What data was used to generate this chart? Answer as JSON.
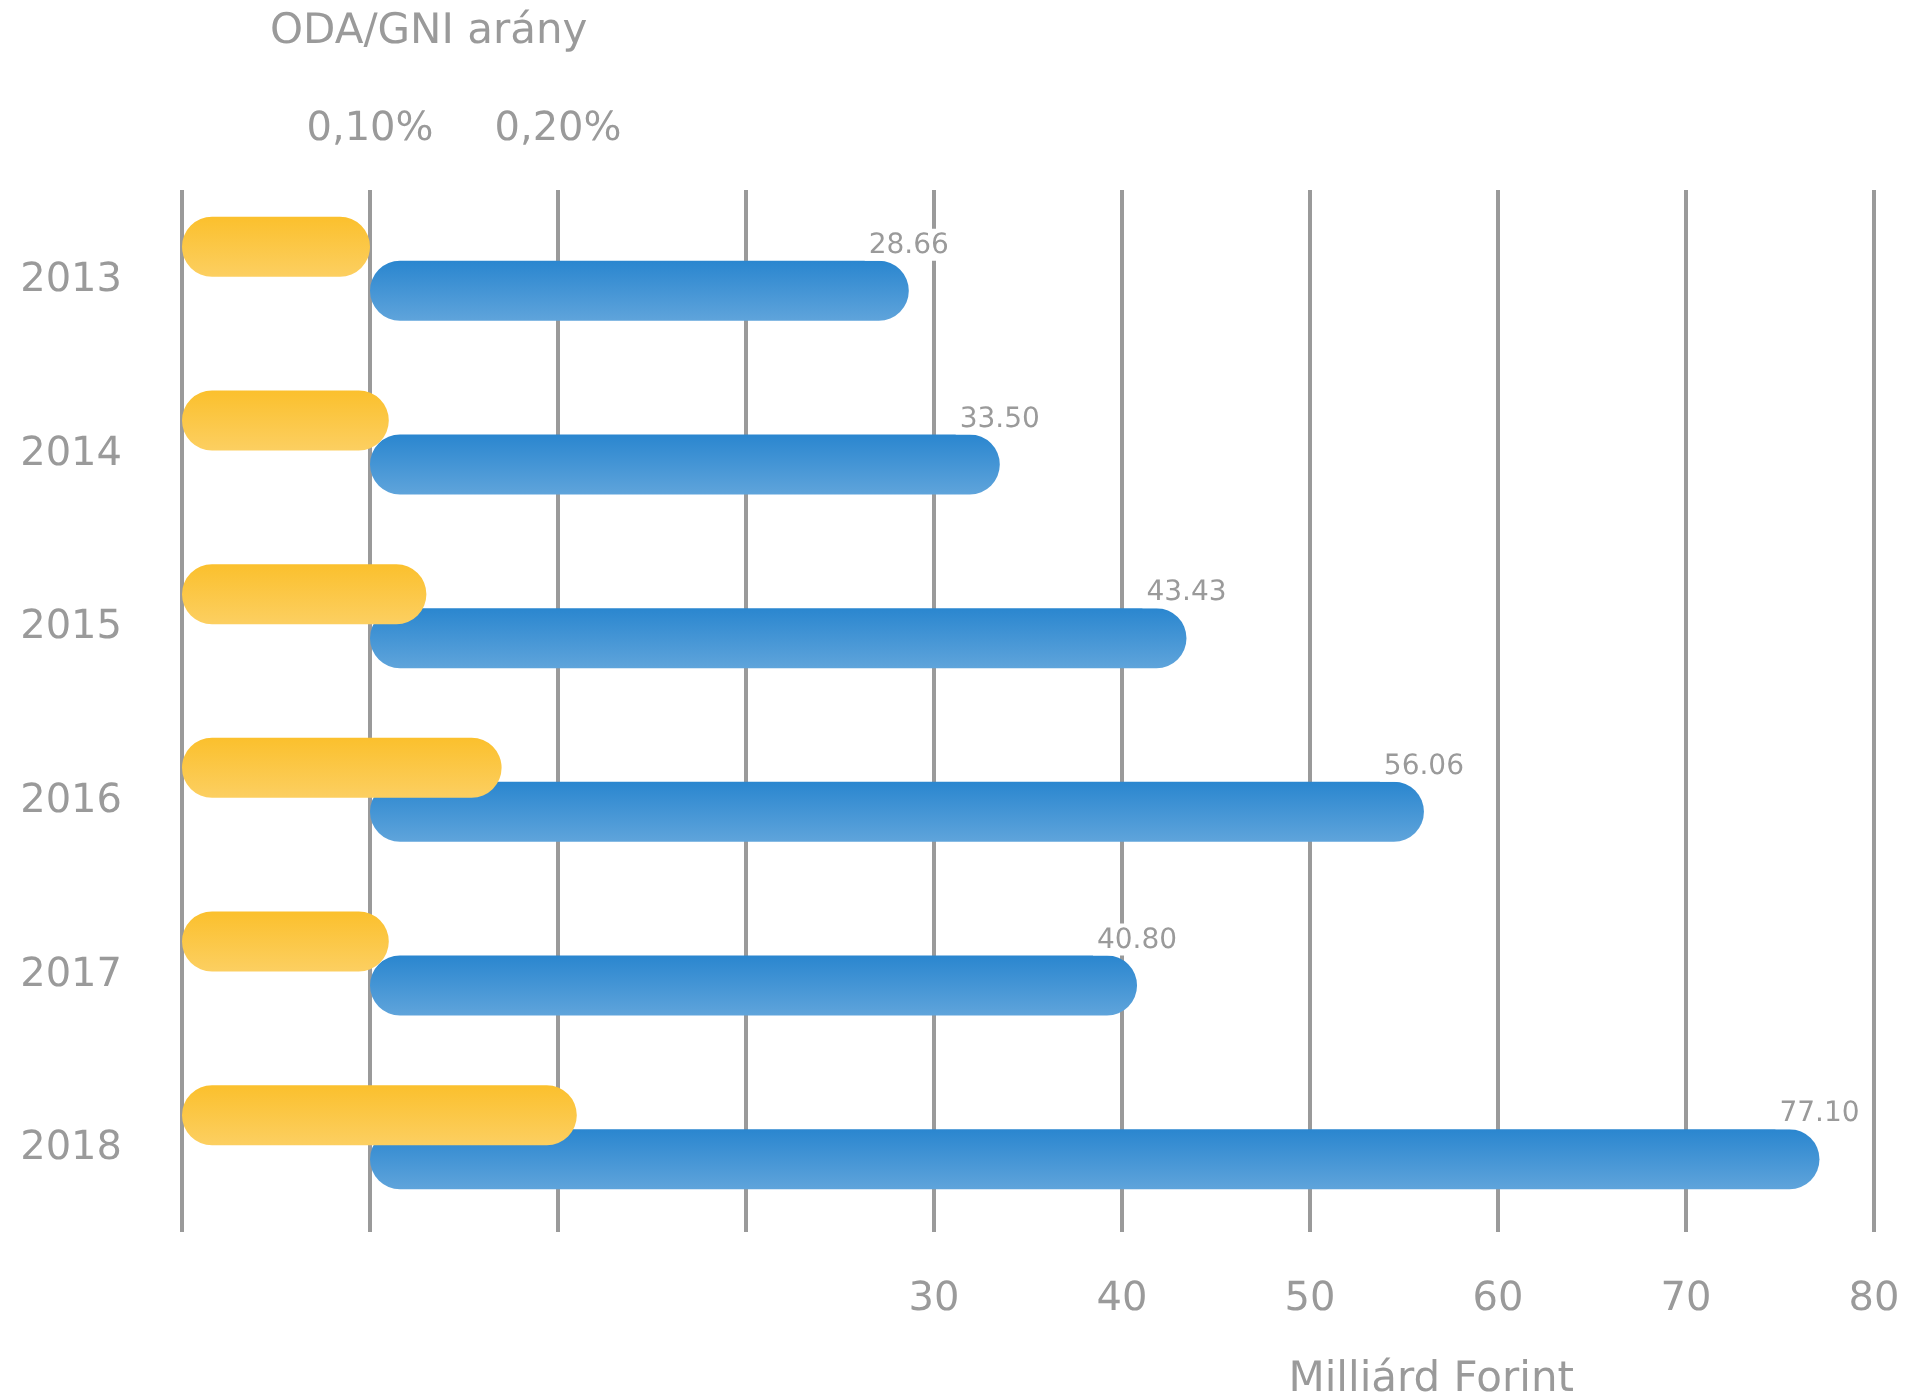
{
  "chart_data": {
    "type": "bar",
    "orientation": "horizontal",
    "categories": [
      "2013",
      "2014",
      "2015",
      "2016",
      "2017",
      "2018"
    ],
    "series": [
      {
        "color": "#fbc02d",
        "axis": "x2",
        "values": [
          0.1,
          0.11,
          0.13,
          0.17,
          0.11,
          0.21
        ]
      },
      {
        "color": "#2a86cf",
        "values": [
          28.66,
          33.5,
          43.43,
          56.06,
          40.8,
          77.1
        ],
        "value_labels": [
          "28.66",
          "33.50",
          "43.43",
          "56.06",
          "40.80",
          "77.10"
        ]
      }
    ],
    "xlabel": "Milliárd Forint",
    "x2label": "ODA/GNI arány",
    "xlim": [
      -10,
      80
    ],
    "xticks": [
      {
        "value": -10,
        "label": null
      },
      {
        "value": 0,
        "label": null
      },
      {
        "value": 10,
        "label": null
      },
      {
        "value": 20,
        "label": null
      },
      30,
      40,
      50,
      60,
      70,
      80
    ],
    "x2lim": [
      0,
      0.9
    ],
    "x2ticks": [
      {
        "value": 0.1,
        "label": "0,10%"
      },
      {
        "value": 0.2,
        "label": "0,20%"
      }
    ],
    "grid": "x"
  }
}
